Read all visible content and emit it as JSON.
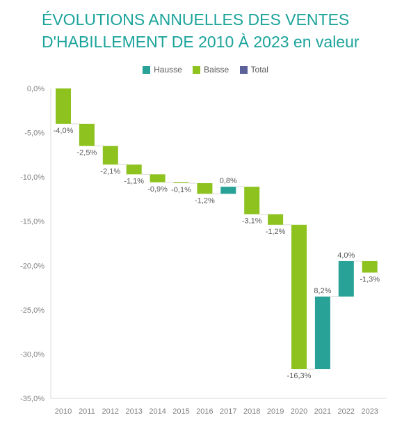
{
  "chart_data": {
    "type": "waterfall",
    "title": [
      "ÉVOLUTIONS ANNUELLES DES VENTES",
      "D'HABILLEMENT DE 2010 À 2023 en valeur"
    ],
    "categories": [
      "2010",
      "2011",
      "2012",
      "2013",
      "2014",
      "2015",
      "2016",
      "2017",
      "2018",
      "2019",
      "2020",
      "2021",
      "2022",
      "2023"
    ],
    "values": [
      -4.0,
      -2.5,
      -2.1,
      -1.1,
      -0.9,
      -0.1,
      -1.2,
      0.8,
      -3.1,
      -1.2,
      -16.3,
      8.2,
      4.0,
      -1.3
    ],
    "data_labels": [
      "-4,0%",
      "-2,5%",
      "-2,1%",
      "-1,1%",
      "-0,9%",
      "-0,1%",
      "-1,2%",
      "0,8%",
      "-3,1%",
      "-1,2%",
      "-16,3%",
      "8,2%",
      "4,0%",
      "-1,3%"
    ],
    "ylim": [
      -35,
      0
    ],
    "yticks": [
      0,
      -5,
      -10,
      -15,
      -20,
      -25,
      -30,
      -35
    ],
    "ytick_labels": [
      "0,0%",
      "-5,0%",
      "-10,0%",
      "-15,0%",
      "-20,0%",
      "-25,0%",
      "-30,0%",
      "-35,0%"
    ],
    "legend": [
      {
        "name": "Hausse",
        "color": "#28a197"
      },
      {
        "name": "Baisse",
        "color": "#8dc21f"
      },
      {
        "name": "Total",
        "color": "#5b6199"
      }
    ],
    "legend_position": "top",
    "grid": false
  }
}
